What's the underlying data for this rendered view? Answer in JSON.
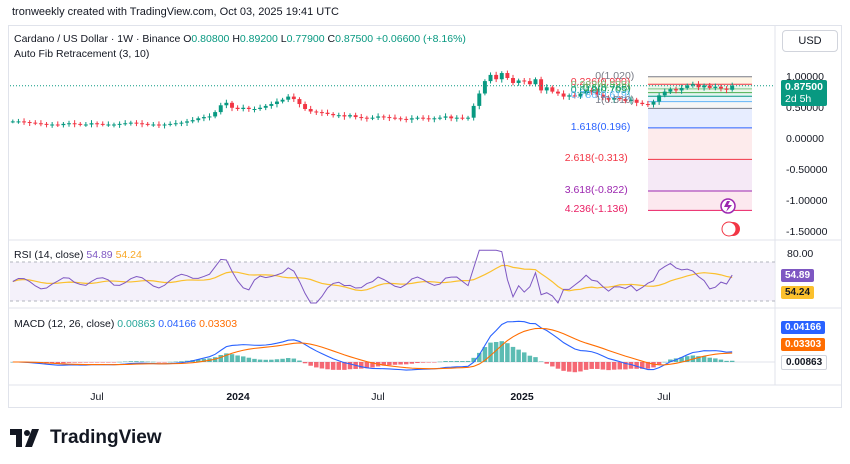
{
  "header": "tronweekly created with TradingView.com, Oct 03, 2025 19:41 UTC",
  "legend": {
    "symbol": "Cardano / US Dollar · 1W · Binance",
    "o_label": "O",
    "o": "0.80800",
    "h_label": "H",
    "h": "0.89200",
    "l_label": "L",
    "l": "0.77900",
    "c_label": "C",
    "c": "0.87500",
    "change": "+0.06600 (+8.16%)",
    "indicator": "Auto Fib Retracement (3, 10)"
  },
  "currency_button": "USD",
  "price_axis": [
    "1.00000",
    "0.50000",
    "0.00000",
    "-0.50000",
    "-1.00000",
    "-1.50000"
  ],
  "price_tag": {
    "price": "0.87500",
    "countdown": "2d 5h"
  },
  "fib_levels": [
    {
      "label": "0(1.020)",
      "value": 1.02,
      "color": "#787b86"
    },
    {
      "label": "0.236(0.900)",
      "value": 0.9,
      "color": "#f23645"
    },
    {
      "label": "0.382(0.825)",
      "value": 0.825,
      "color": "#81c784"
    },
    {
      "label": "0.5(0.765)",
      "value": 0.765,
      "color": "#4caf50"
    },
    {
      "label": "0.618(0.705)",
      "value": 0.705,
      "color": "#089981"
    },
    {
      "label": "0.786(0.619)",
      "value": 0.619,
      "color": "#64b5f6"
    },
    {
      "label": "1(0.510)",
      "value": 0.51,
      "color": "#787b86"
    },
    {
      "label": "1.618(0.196)",
      "value": 0.196,
      "color": "#2962ff"
    },
    {
      "label": "2.618(-0.313)",
      "value": -0.313,
      "color": "#f23645"
    },
    {
      "label": "3.618(-0.822)",
      "value": -0.822,
      "color": "#9c27b0"
    },
    {
      "label": "4.236(-1.136)",
      "value": -1.136,
      "color": "#e91e63"
    }
  ],
  "rsi": {
    "label": "RSI (14, close)",
    "rsi": "54.89",
    "ma": "54.24",
    "axis": "80.00",
    "rsi_color": "#7e57c2",
    "ma_color": "#fbc02d"
  },
  "macd": {
    "label": "MACD (12, 26, close)",
    "hist": "0.00863",
    "macd": "0.04166",
    "signal": "0.03303",
    "macd_color": "#2962ff",
    "signal_color": "#ff6d00",
    "hist_color": "#26a69a"
  },
  "x_axis": [
    {
      "label": "Jul",
      "bold": false
    },
    {
      "label": "2024",
      "bold": true
    },
    {
      "label": "Jul",
      "bold": false
    },
    {
      "label": "2025",
      "bold": true
    },
    {
      "label": "Jul",
      "bold": false
    }
  ],
  "brand": "TradingView",
  "chart_data": {
    "type": "candlestick",
    "xlabel": "",
    "ylabel": "",
    "ylim": [
      -1.5,
      1.05
    ],
    "series": [
      {
        "name": "ADA/USD weekly close",
        "values": [
          0.3,
          0.3,
          0.29,
          0.28,
          0.27,
          0.26,
          0.25,
          0.25,
          0.24,
          0.26,
          0.27,
          0.26,
          0.25,
          0.25,
          0.27,
          0.26,
          0.25,
          0.25,
          0.25,
          0.26,
          0.27,
          0.28,
          0.27,
          0.26,
          0.25,
          0.25,
          0.24,
          0.25,
          0.26,
          0.27,
          0.28,
          0.3,
          0.32,
          0.35,
          0.37,
          0.38,
          0.45,
          0.56,
          0.6,
          0.52,
          0.5,
          0.52,
          0.5,
          0.5,
          0.52,
          0.55,
          0.58,
          0.62,
          0.65,
          0.7,
          0.66,
          0.58,
          0.5,
          0.46,
          0.45,
          0.44,
          0.42,
          0.4,
          0.4,
          0.38,
          0.4,
          0.37,
          0.36,
          0.35,
          0.36,
          0.38,
          0.37,
          0.36,
          0.35,
          0.34,
          0.33,
          0.35,
          0.36,
          0.35,
          0.34,
          0.35,
          0.36,
          0.38,
          0.35,
          0.36,
          0.35,
          0.36,
          0.55,
          0.75,
          0.95,
          1.05,
          0.98,
          1.08,
          1.0,
          0.92,
          0.96,
          0.95,
          0.9,
          0.98,
          0.8,
          0.85,
          0.78,
          0.75,
          0.7,
          0.72,
          0.7,
          0.75,
          0.8,
          0.78,
          0.73,
          0.68,
          0.65,
          0.68,
          0.66,
          0.63,
          0.65,
          0.6,
          0.58,
          0.57,
          0.62,
          0.72,
          0.78,
          0.82,
          0.8,
          0.84,
          0.88,
          0.9,
          0.85,
          0.88,
          0.84,
          0.86,
          0.83,
          0.81,
          0.875
        ]
      }
    ]
  }
}
